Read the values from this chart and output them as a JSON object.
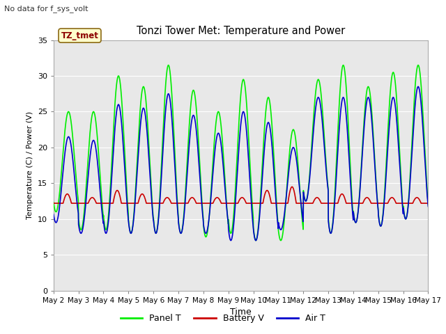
{
  "title": "Tonzi Tower Met: Temperature and Power",
  "xlabel": "Time",
  "ylabel": "Temperature (C) / Power (V)",
  "top_left_text": "No data for f_sys_volt",
  "annotation_text": "TZ_tmet",
  "ylim": [
    0,
    35
  ],
  "yticks": [
    0,
    5,
    10,
    15,
    20,
    25,
    30,
    35
  ],
  "x_labels": [
    "May 2",
    "May 3",
    "May 4",
    "May 5",
    "May 6",
    "May 7",
    "May 8",
    "May 9",
    "May 10",
    "May 11",
    "May 12",
    "May 13",
    "May 14",
    "May 15",
    "May 16",
    "May 17"
  ],
  "fig_bg_color": "#ffffff",
  "plot_bg_color": "#e8e8e8",
  "grid_color": "#ffffff",
  "panel_T_color": "#00ee00",
  "battery_V_color": "#cc0000",
  "air_T_color": "#0000cc",
  "line_width": 1.2,
  "legend_labels": [
    "Panel T",
    "Battery V",
    "Air T"
  ],
  "panel_peaks": [
    25,
    25,
    30,
    28.5,
    31.5,
    28,
    25,
    29.5,
    27,
    22.5,
    29.5,
    31.5,
    28.5,
    30.5,
    31.5
  ],
  "panel_troughs": [
    11,
    8.5,
    8.5,
    8,
    8,
    8,
    7.5,
    8,
    7,
    7,
    12.5,
    8,
    9.5,
    9,
    10
  ],
  "air_peaks": [
    21.5,
    21,
    26,
    25.5,
    27.5,
    24.5,
    22,
    25,
    23.5,
    20,
    27,
    27,
    27,
    27,
    28.5
  ],
  "air_troughs": [
    9.5,
    8,
    8,
    8,
    8,
    8,
    8,
    7,
    7,
    8.5,
    12.5,
    8,
    9.5,
    9,
    10
  ],
  "batt_base": 12.2,
  "batt_day_peaks": [
    13.5,
    13,
    14,
    13.5,
    13,
    13,
    13,
    13,
    14,
    14.5,
    13,
    13.5,
    13,
    13,
    13
  ]
}
